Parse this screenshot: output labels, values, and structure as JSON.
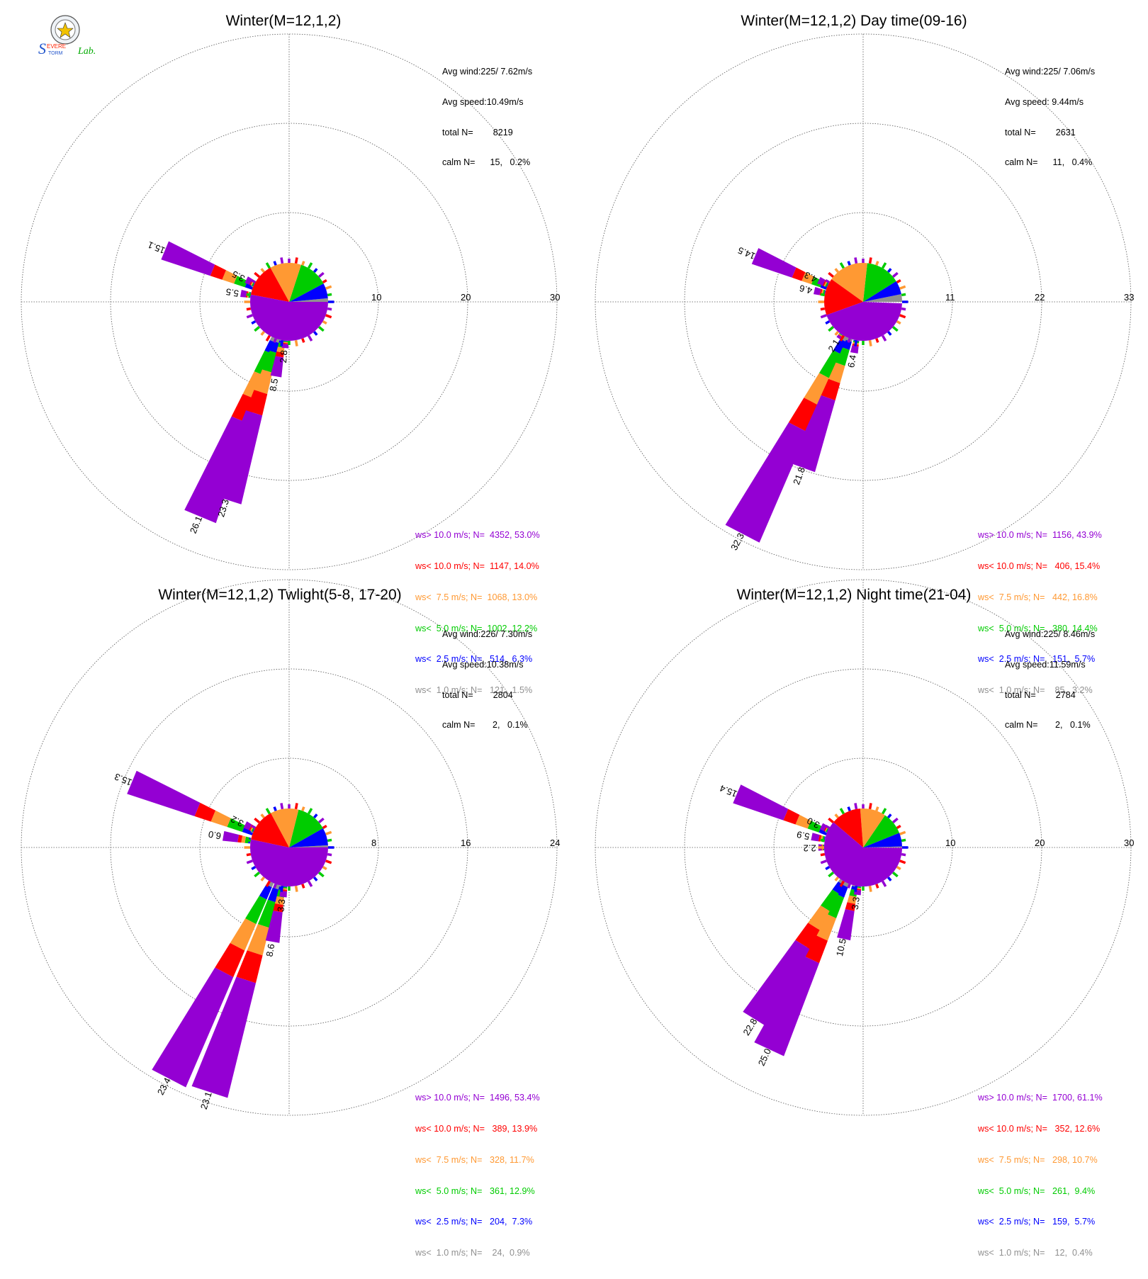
{
  "logo": {
    "text_s": "S",
    "text_evere": "EVERE",
    "text_torm": "TORM",
    "text_lab": "Lab."
  },
  "colors": {
    "gt10": "#9400d3",
    "lt10": "#ff0000",
    "lt75": "#ff9933",
    "lt5": "#00cc00",
    "lt25": "#0000ff",
    "lt1": "#909090",
    "ring": "#555555"
  },
  "chart_data": [
    {
      "type": "windrose",
      "title": "Winter(M=12,1,2)",
      "stats": [
        "Avg wind:225/ 7.62m/s",
        "Avg speed:10.49m/s",
        "total N=        8219",
        "calm N=      15,   0.2%"
      ],
      "ring_ticks": [
        "10",
        "20",
        "30"
      ],
      "ring_values": [
        10,
        20,
        30
      ],
      "legend": [
        {
          "text": "ws> 10.0 m/s; N=  4352, 53.0%",
          "color": "gt10"
        },
        {
          "text": "ws< 10.0 m/s; N=  1147, 14.0%",
          "color": "lt10"
        },
        {
          "text": "ws<  7.5 m/s; N=  1068, 13.0%",
          "color": "lt75"
        },
        {
          "text": "ws<  5.0 m/s; N=  1002, 12.2%",
          "color": "lt5"
        },
        {
          "text": "ws<  2.5 m/s; N=   514,  6.3%",
          "color": "lt25"
        },
        {
          "text": "ws<  1.0 m/s; N=   121,  1.5%",
          "color": "lt1"
        }
      ],
      "pie_fractions": [
        0.015,
        0.063,
        0.122,
        0.13,
        0.14,
        0.53
      ],
      "directions": [
        {
          "dir": 202.5,
          "value": 26.1,
          "label": "26.1"
        },
        {
          "dir": 197.5,
          "value": 23.3,
          "label": "23.3"
        },
        {
          "dir": 190.0,
          "value": 8.5,
          "label": "8.5"
        },
        {
          "dir": 185.0,
          "value": 2.8,
          "label": "2.8"
        },
        {
          "dir": 292.5,
          "value": 15.1,
          "label": "15.1"
        },
        {
          "dir": 280.0,
          "value": 5.5,
          "label": "5.5"
        },
        {
          "dir": 297.5,
          "value": 3.5,
          "label": "3.5"
        }
      ]
    },
    {
      "type": "windrose",
      "title": "Winter(M=12,1,2) Day time(09-16)",
      "stats": [
        "Avg wind:225/ 7.06m/s",
        "Avg speed: 9.44m/s",
        "total N=        2631",
        "calm N=      11,   0.4%"
      ],
      "ring_ticks": [
        "11",
        "22",
        "33"
      ],
      "ring_values": [
        11,
        22,
        33
      ],
      "legend": [
        {
          "text": "ws> 10.0 m/s; N=  1156, 43.9%",
          "color": "gt10"
        },
        {
          "text": "ws< 10.0 m/s; N=   406, 15.4%",
          "color": "lt10"
        },
        {
          "text": "ws<  7.5 m/s; N=   442, 16.8%",
          "color": "lt75"
        },
        {
          "text": "ws<  5.0 m/s; N=   380, 14.4%",
          "color": "lt5"
        },
        {
          "text": "ws<  2.5 m/s; N=   151,  5.7%",
          "color": "lt25"
        },
        {
          "text": "ws<  1.0 m/s; N=    85,  3.2%",
          "color": "lt1"
        }
      ],
      "pie_fractions": [
        0.032,
        0.057,
        0.144,
        0.168,
        0.154,
        0.439
      ],
      "directions": [
        {
          "dir": 207.5,
          "value": 32.3,
          "label": "32.3"
        },
        {
          "dir": 200.0,
          "value": 21.8,
          "label": "21.8"
        },
        {
          "dir": 190.0,
          "value": 6.4,
          "label": "6.4"
        },
        {
          "dir": 213.0,
          "value": 2.1,
          "label": "2.1"
        },
        {
          "dir": 293.0,
          "value": 14.5,
          "label": "14.5"
        },
        {
          "dir": 283.0,
          "value": 4.6,
          "label": "4.6"
        },
        {
          "dir": 296.0,
          "value": 4.3,
          "label": "4.3"
        }
      ]
    },
    {
      "type": "windrose",
      "title": "Winter(M=12,1,2) Twlight(5-8, 17-20)",
      "stats": [
        "Avg wind:226/ 7.30m/s",
        "Avg speed:10.38m/s",
        "total N=        2804",
        "calm N=       2,   0.1%"
      ],
      "ring_ticks": [
        "8",
        "16",
        "24"
      ],
      "ring_values": [
        8,
        16,
        24
      ],
      "legend": [
        {
          "text": "ws> 10.0 m/s; N=  1496, 53.4%",
          "color": "gt10"
        },
        {
          "text": "ws< 10.0 m/s; N=   389, 13.9%",
          "color": "lt10"
        },
        {
          "text": "ws<  7.5 m/s; N=   328, 11.7%",
          "color": "lt75"
        },
        {
          "text": "ws<  5.0 m/s; N=   361, 12.9%",
          "color": "lt5"
        },
        {
          "text": "ws<  2.5 m/s; N=   204,  7.3%",
          "color": "lt25"
        },
        {
          "text": "ws<  1.0 m/s; N=    24,  0.9%",
          "color": "lt1"
        }
      ],
      "pie_fractions": [
        0.009,
        0.073,
        0.129,
        0.117,
        0.139,
        0.534
      ],
      "directions": [
        {
          "dir": 207.5,
          "value": 23.4,
          "label": "23.4"
        },
        {
          "dir": 198.0,
          "value": 23.1,
          "label": "23.1"
        },
        {
          "dir": 190.0,
          "value": 8.6,
          "label": "8.6"
        },
        {
          "dir": 187.0,
          "value": 3.3,
          "label": "3.3"
        },
        {
          "dir": 292.5,
          "value": 15.3,
          "label": "15.3"
        },
        {
          "dir": 280.0,
          "value": 6.0,
          "label": "6.0"
        },
        {
          "dir": 297.5,
          "value": 3.2,
          "label": "3.2"
        }
      ]
    },
    {
      "type": "windrose",
      "title": "Winter(M=12,1,2) Night time(21-04)",
      "stats": [
        "Avg wind:225/ 8.46m/s",
        "Avg speed:11.59m/s",
        "total N=        2784",
        "calm N=       2,   0.1%"
      ],
      "ring_ticks": [
        "10",
        "20",
        "30"
      ],
      "ring_values": [
        10,
        20,
        30
      ],
      "legend": [
        {
          "text": "ws> 10.0 m/s; N=  1700, 61.1%",
          "color": "gt10"
        },
        {
          "text": "ws< 10.0 m/s; N=   352, 12.6%",
          "color": "lt10"
        },
        {
          "text": "ws<  7.5 m/s; N=   298, 10.7%",
          "color": "lt75"
        },
        {
          "text": "ws<  5.0 m/s; N=   261,  9.4%",
          "color": "lt5"
        },
        {
          "text": "ws<  2.5 m/s; N=   159,  5.7%",
          "color": "lt25"
        },
        {
          "text": "ws<  1.0 m/s; N=    12,  0.4%",
          "color": "lt1"
        }
      ],
      "pie_fractions": [
        0.004,
        0.057,
        0.094,
        0.107,
        0.126,
        0.611
      ],
      "directions": [
        {
          "dir": 205.0,
          "value": 25.0,
          "label": "25.0"
        },
        {
          "dir": 212.0,
          "value": 22.8,
          "label": "22.8"
        },
        {
          "dir": 192.0,
          "value": 10.5,
          "label": "10.5"
        },
        {
          "dir": 187.0,
          "value": 3.3,
          "label": "3.3"
        },
        {
          "dir": 293.0,
          "value": 15.4,
          "label": "15.4"
        },
        {
          "dir": 282.0,
          "value": 5.9,
          "label": "5.9"
        },
        {
          "dir": 297.0,
          "value": 3.0,
          "label": "3.0"
        },
        {
          "dir": 270.0,
          "value": 2.2,
          "label": "2.2"
        }
      ]
    }
  ]
}
